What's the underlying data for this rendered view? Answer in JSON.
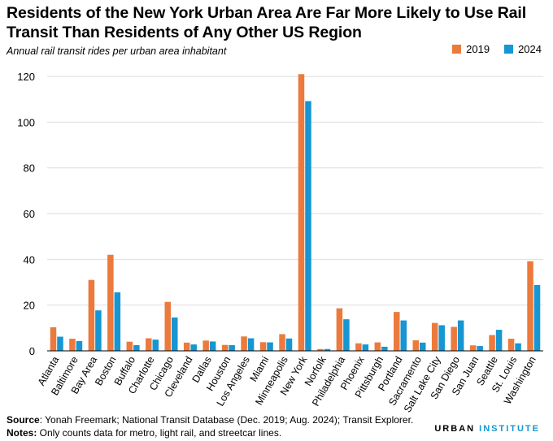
{
  "title": "Residents of the New York Urban Area Are Far More Likely to Use Rail Transit Than Residents of Any Other US Region",
  "subtitle": "Annual rail transit rides per urban area inhabitant",
  "footer": {
    "source_label": "Source",
    "source_text": ": Yonah Freemark; National Transit Database (Dec. 2019; Aug. 2024); Transit Explorer.",
    "notes_label": "Notes:",
    "notes_text": " Only counts data for metro, light rail, and streetcar lines."
  },
  "logo": {
    "part1": "URBAN",
    "part2": "INSTITUTE"
  },
  "colors": {
    "series_2019": "#ec7a3c",
    "series_2024": "#1696d2",
    "grid": "#dedede",
    "axis": "#000000"
  },
  "chart_data": {
    "type": "bar",
    "categories": [
      "Atlanta",
      "Baltimore",
      "Bay Area",
      "Boston",
      "Buffalo",
      "Charlotte",
      "Chicago",
      "Cleveland",
      "Dallas",
      "Houston",
      "Los Angeles",
      "Miami",
      "Minneapolis",
      "New York",
      "Norfolk",
      "Philadelphia",
      "Phoenix",
      "Pittsburgh",
      "Portland",
      "Sacramento",
      "Salt Lake City",
      "San Diego",
      "San Juan",
      "Seattle",
      "St. Louis",
      "Washington"
    ],
    "series": [
      {
        "name": "2019",
        "values": [
          10.3,
          5.3,
          31,
          42,
          4,
          5.5,
          21.4,
          3.6,
          4.5,
          2.6,
          6.3,
          3.8,
          7.3,
          121,
          0.8,
          18.6,
          3.3,
          3.7,
          17,
          4.6,
          12.2,
          10.5,
          2.4,
          6.9,
          5.3,
          39.2
        ]
      },
      {
        "name": "2024",
        "values": [
          6.2,
          4.3,
          17.7,
          25.6,
          2.5,
          4.9,
          14.6,
          2.8,
          4.1,
          2.5,
          5.5,
          3.7,
          5.4,
          109.2,
          0.8,
          13.8,
          2.8,
          1.8,
          13.3,
          3.6,
          11.2,
          13.3,
          2.1,
          9.2,
          3.3,
          28.8
        ]
      }
    ],
    "ylim": [
      0,
      125
    ],
    "yticks": [
      0,
      20,
      40,
      60,
      80,
      100,
      120
    ],
    "grid": true,
    "legend": "top-right"
  }
}
